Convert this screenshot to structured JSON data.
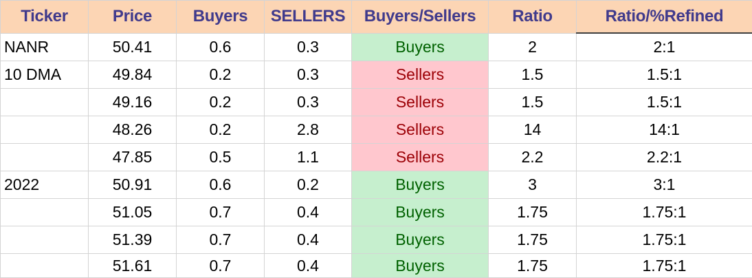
{
  "table": {
    "headers": [
      "Ticker",
      "Price",
      "Buyers",
      "SELLERS",
      "Buyers/Sellers",
      "Ratio",
      "Ratio/%Refined"
    ],
    "rows": [
      {
        "ticker": "NANR",
        "price": "50.41",
        "buyers": "0.6",
        "sellers": "0.3",
        "signal": "Buyers",
        "ratio": "2",
        "refined": "2:1"
      },
      {
        "ticker": "10 DMA",
        "price": "49.84",
        "buyers": "0.2",
        "sellers": "0.3",
        "signal": "Sellers",
        "ratio": "1.5",
        "refined": "1.5:1"
      },
      {
        "ticker": "",
        "price": "49.16",
        "buyers": "0.2",
        "sellers": "0.3",
        "signal": "Sellers",
        "ratio": "1.5",
        "refined": "1.5:1"
      },
      {
        "ticker": "",
        "price": "48.26",
        "buyers": "0.2",
        "sellers": "2.8",
        "signal": "Sellers",
        "ratio": "14",
        "refined": "14:1"
      },
      {
        "ticker": "",
        "price": "47.85",
        "buyers": "0.5",
        "sellers": "1.1",
        "signal": "Sellers",
        "ratio": "2.2",
        "refined": "2.2:1"
      },
      {
        "ticker": "2022",
        "price": "50.91",
        "buyers": "0.6",
        "sellers": "0.2",
        "signal": "Buyers",
        "ratio": "3",
        "refined": "3:1"
      },
      {
        "ticker": "",
        "price": "51.05",
        "buyers": "0.7",
        "sellers": "0.4",
        "signal": "Buyers",
        "ratio": "1.75",
        "refined": "1.75:1"
      },
      {
        "ticker": "",
        "price": "51.39",
        "buyers": "0.7",
        "sellers": "0.4",
        "signal": "Buyers",
        "ratio": "1.75",
        "refined": "1.75:1"
      },
      {
        "ticker": "",
        "price": "51.61",
        "buyers": "0.7",
        "sellers": "0.4",
        "signal": "Buyers",
        "ratio": "1.75",
        "refined": "1.75:1"
      }
    ]
  },
  "colors": {
    "header_bg": "#fcd5b4",
    "header_text": "#403a8c",
    "buyers_bg": "#c6efce",
    "buyers_text": "#006100",
    "sellers_bg": "#ffc7ce",
    "sellers_text": "#9c0006"
  }
}
